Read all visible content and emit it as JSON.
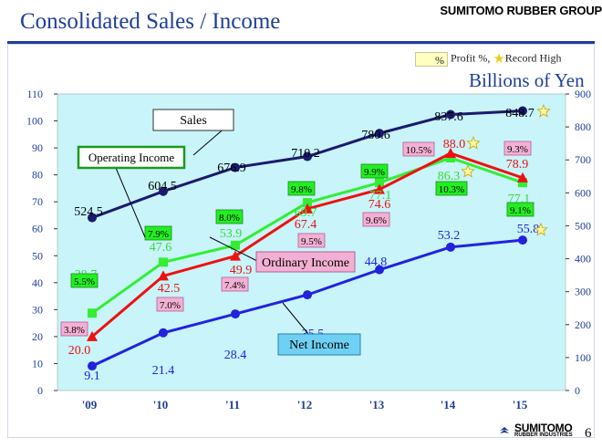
{
  "page": {
    "title": "Consolidated Sales / Income",
    "brand_top": "SUMITOMO RUBBER GROUP",
    "unit": "Billions of Yen",
    "legend_box_text": "%",
    "legend_profit": "Profit %,",
    "legend_record": "Record  High",
    "footer_brand": "SUMITOMO",
    "footer_sub": "RUBBER INDUSTRIES",
    "page_number": "6"
  },
  "chart_data": {
    "type": "line",
    "categories": [
      "'09",
      "'10",
      "'11",
      "'12",
      "'13",
      "'14",
      "'15"
    ],
    "left_axis": {
      "ticks": [
        0,
        10,
        20,
        30,
        40,
        50,
        60,
        70,
        80,
        90,
        100,
        110
      ],
      "range": [
        0,
        110
      ]
    },
    "right_axis": {
      "ticks": [
        0,
        100,
        200,
        300,
        400,
        500,
        600,
        700,
        800,
        900
      ],
      "range": [
        0,
        900
      ]
    },
    "series": [
      {
        "name": "Sales",
        "axis": "right",
        "color": "#1a1a6e",
        "values": [
          524.5,
          604.5,
          676.9,
          710.2,
          780.6,
          837.6,
          848.7
        ],
        "labels": [
          "524.5",
          "604.5",
          "676.9",
          "710.2",
          "780.6",
          "837.6",
          "848.7"
        ],
        "record_high": [
          false,
          false,
          false,
          false,
          false,
          false,
          true
        ]
      },
      {
        "name": "Operating Income",
        "axis": "left",
        "color": "#33ee33",
        "values": [
          28.7,
          47.6,
          53.9,
          69.7,
          77.1,
          86.3,
          77.1
        ],
        "labels": [
          "28.7",
          "47.6",
          "53.9",
          "69.7",
          "77.1",
          "86.3",
          "77.1"
        ],
        "percent": [
          "5.5%",
          "7.9%",
          "8.0%",
          "9.8%",
          "9.9%",
          "10.3%",
          "9.1%"
        ],
        "record_high": [
          false,
          false,
          false,
          false,
          false,
          true,
          false
        ]
      },
      {
        "name": "Ordinary Income",
        "axis": "left",
        "color": "#ee1111",
        "values": [
          20.0,
          42.5,
          49.9,
          67.4,
          74.6,
          88.0,
          78.9
        ],
        "labels": [
          "20.0",
          "42.5",
          "49.9",
          "67.4",
          "74.6",
          "88.0",
          "78.9"
        ],
        "percent": [
          "3.8%",
          "7.0%",
          "7.4%",
          "9.5%",
          "9.6%",
          "10.5%",
          "9.3%"
        ],
        "record_high": [
          false,
          false,
          false,
          false,
          false,
          true,
          false
        ]
      },
      {
        "name": "Net Income",
        "axis": "left",
        "color": "#2222dd",
        "values": [
          9.1,
          21.4,
          28.4,
          35.5,
          44.8,
          53.2,
          55.8
        ],
        "labels": [
          "9.1",
          "21.4",
          "28.4",
          "35.5",
          "44.8",
          "53.2",
          "55.8"
        ],
        "record_high": [
          false,
          false,
          false,
          false,
          false,
          false,
          true
        ]
      }
    ],
    "plot_background": "#c8f4fa",
    "grid": false
  }
}
